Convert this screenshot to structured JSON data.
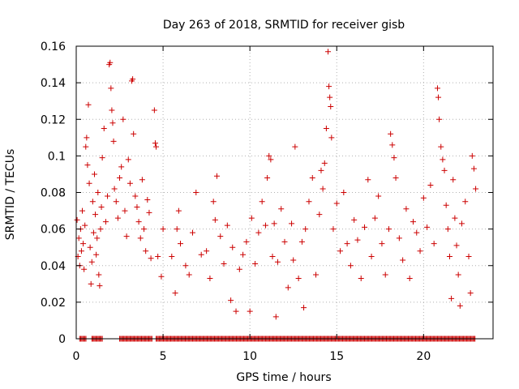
{
  "chart_data": {
    "type": "scatter",
    "title": "Day 263 of 2018, SRMTID for receiver gisb",
    "xlabel": "GPS time / hours",
    "ylabel": "SRMTID / TECUs",
    "xlim": [
      0,
      24
    ],
    "ylim": [
      0,
      0.16
    ],
    "x_ticks": [
      0,
      5,
      10,
      15,
      20
    ],
    "x_tick_labels": [
      "0",
      "5",
      "10",
      "15",
      "20"
    ],
    "y_ticks": [
      0,
      0.02,
      0.04,
      0.06,
      0.08,
      0.1,
      0.12,
      0.14,
      0.16
    ],
    "y_tick_labels": [
      "0",
      "0.02",
      "0.04",
      "0.06",
      "0.08",
      "0.1",
      "0.12",
      "0.14",
      "0.16"
    ],
    "grid": true,
    "marker": "+",
    "series": [
      {
        "name": "SRMTID",
        "color": "#cc0000",
        "points": [
          [
            0.05,
            0.065
          ],
          [
            0.1,
            0.045
          ],
          [
            0.15,
            0.055
          ],
          [
            0.2,
            0.04
          ],
          [
            0.25,
            0.06
          ],
          [
            0.3,
            0.048
          ],
          [
            0.35,
            0.07
          ],
          [
            0.4,
            0.052
          ],
          [
            0.45,
            0.038
          ],
          [
            0.5,
            0.062
          ],
          [
            0.55,
            0.105
          ],
          [
            0.6,
            0.11
          ],
          [
            0.65,
            0.095
          ],
          [
            0.7,
            0.128
          ],
          [
            0.75,
            0.085
          ],
          [
            0.8,
            0.05
          ],
          [
            0.85,
            0.03
          ],
          [
            0.9,
            0.042
          ],
          [
            0.95,
            0.075
          ],
          [
            1.0,
            0.058
          ],
          [
            1.05,
            0.09
          ],
          [
            1.1,
            0.068
          ],
          [
            1.15,
            0.046
          ],
          [
            1.2,
            0.055
          ],
          [
            1.25,
            0.08
          ],
          [
            1.3,
            0.035
          ],
          [
            1.35,
            0.029
          ],
          [
            1.4,
            0.06
          ],
          [
            1.45,
            0.072
          ],
          [
            1.5,
            0.099
          ],
          [
            1.6,
            0.115
          ],
          [
            1.7,
            0.064
          ],
          [
            1.8,
            0.078
          ],
          [
            1.9,
            0.15
          ],
          [
            1.95,
            0.151
          ],
          [
            2.0,
            0.137
          ],
          [
            2.05,
            0.125
          ],
          [
            2.1,
            0.118
          ],
          [
            2.15,
            0.108
          ],
          [
            2.2,
            0.082
          ],
          [
            2.3,
            0.075
          ],
          [
            2.4,
            0.066
          ],
          [
            2.5,
            0.088
          ],
          [
            2.6,
            0.094
          ],
          [
            2.7,
            0.12
          ],
          [
            2.8,
            0.07
          ],
          [
            2.9,
            0.056
          ],
          [
            3.0,
            0.098
          ],
          [
            3.1,
            0.085
          ],
          [
            3.2,
            0.141
          ],
          [
            3.25,
            0.142
          ],
          [
            3.3,
            0.112
          ],
          [
            3.4,
            0.078
          ],
          [
            3.5,
            0.072
          ],
          [
            3.6,
            0.064
          ],
          [
            3.7,
            0.055
          ],
          [
            3.8,
            0.087
          ],
          [
            3.9,
            0.06
          ],
          [
            4.0,
            0.048
          ],
          [
            4.1,
            0.076
          ],
          [
            4.2,
            0.069
          ],
          [
            4.3,
            0.044
          ],
          [
            4.5,
            0.125
          ],
          [
            4.55,
            0.107
          ],
          [
            4.6,
            0.105
          ],
          [
            4.7,
            0.045
          ],
          [
            4.9,
            0.034
          ],
          [
            5.0,
            0.06
          ],
          [
            5.5,
            0.045
          ],
          [
            5.7,
            0.025
          ],
          [
            5.8,
            0.06
          ],
          [
            5.9,
            0.07
          ],
          [
            6.0,
            0.052
          ],
          [
            6.3,
            0.04
          ],
          [
            6.5,
            0.035
          ],
          [
            6.7,
            0.058
          ],
          [
            6.9,
            0.08
          ],
          [
            7.2,
            0.046
          ],
          [
            7.5,
            0.048
          ],
          [
            7.7,
            0.033
          ],
          [
            7.9,
            0.075
          ],
          [
            8.0,
            0.065
          ],
          [
            8.1,
            0.089
          ],
          [
            8.3,
            0.056
          ],
          [
            8.5,
            0.041
          ],
          [
            8.7,
            0.062
          ],
          [
            8.9,
            0.021
          ],
          [
            9.0,
            0.05
          ],
          [
            9.2,
            0.015
          ],
          [
            9.4,
            0.038
          ],
          [
            9.6,
            0.046
          ],
          [
            9.8,
            0.053
          ],
          [
            10.0,
            0.015
          ],
          [
            10.1,
            0.066
          ],
          [
            10.3,
            0.041
          ],
          [
            10.5,
            0.058
          ],
          [
            10.7,
            0.075
          ],
          [
            10.9,
            0.062
          ],
          [
            11.0,
            0.088
          ],
          [
            11.1,
            0.1
          ],
          [
            11.2,
            0.098
          ],
          [
            11.3,
            0.045
          ],
          [
            11.4,
            0.063
          ],
          [
            11.5,
            0.012
          ],
          [
            11.6,
            0.042
          ],
          [
            11.8,
            0.071
          ],
          [
            12.0,
            0.053
          ],
          [
            12.2,
            0.028
          ],
          [
            12.4,
            0.063
          ],
          [
            12.5,
            0.043
          ],
          [
            12.6,
            0.105
          ],
          [
            12.8,
            0.033
          ],
          [
            13.0,
            0.053
          ],
          [
            13.1,
            0.017
          ],
          [
            13.2,
            0.06
          ],
          [
            13.4,
            0.075
          ],
          [
            13.6,
            0.088
          ],
          [
            13.8,
            0.035
          ],
          [
            14.0,
            0.068
          ],
          [
            14.1,
            0.092
          ],
          [
            14.2,
            0.082
          ],
          [
            14.3,
            0.096
          ],
          [
            14.4,
            0.115
          ],
          [
            14.5,
            0.157
          ],
          [
            14.55,
            0.138
          ],
          [
            14.6,
            0.132
          ],
          [
            14.65,
            0.127
          ],
          [
            14.7,
            0.11
          ],
          [
            14.8,
            0.06
          ],
          [
            15.0,
            0.074
          ],
          [
            15.2,
            0.048
          ],
          [
            15.4,
            0.08
          ],
          [
            15.6,
            0.052
          ],
          [
            15.8,
            0.04
          ],
          [
            16.0,
            0.065
          ],
          [
            16.2,
            0.054
          ],
          [
            16.4,
            0.033
          ],
          [
            16.6,
            0.061
          ],
          [
            16.8,
            0.087
          ],
          [
            17.0,
            0.045
          ],
          [
            17.2,
            0.066
          ],
          [
            17.4,
            0.078
          ],
          [
            17.6,
            0.052
          ],
          [
            17.8,
            0.035
          ],
          [
            18.0,
            0.06
          ],
          [
            18.1,
            0.112
          ],
          [
            18.2,
            0.106
          ],
          [
            18.3,
            0.099
          ],
          [
            18.4,
            0.088
          ],
          [
            18.6,
            0.055
          ],
          [
            18.8,
            0.043
          ],
          [
            19.0,
            0.071
          ],
          [
            19.2,
            0.033
          ],
          [
            19.4,
            0.064
          ],
          [
            19.6,
            0.058
          ],
          [
            19.8,
            0.048
          ],
          [
            20.0,
            0.077
          ],
          [
            20.2,
            0.061
          ],
          [
            20.4,
            0.084
          ],
          [
            20.6,
            0.052
          ],
          [
            20.8,
            0.137
          ],
          [
            20.85,
            0.132
          ],
          [
            20.9,
            0.12
          ],
          [
            21.0,
            0.105
          ],
          [
            21.1,
            0.098
          ],
          [
            21.2,
            0.092
          ],
          [
            21.3,
            0.073
          ],
          [
            21.4,
            0.06
          ],
          [
            21.5,
            0.045
          ],
          [
            21.6,
            0.022
          ],
          [
            21.7,
            0.087
          ],
          [
            21.8,
            0.066
          ],
          [
            21.9,
            0.051
          ],
          [
            22.0,
            0.035
          ],
          [
            22.1,
            0.018
          ],
          [
            22.2,
            0.063
          ],
          [
            22.4,
            0.075
          ],
          [
            22.6,
            0.045
          ],
          [
            22.7,
            0.025
          ],
          [
            22.8,
            0.1
          ],
          [
            22.9,
            0.093
          ],
          [
            23.0,
            0.082
          ]
        ]
      }
    ],
    "zero_band_x": [
      [
        0.2,
        0.6
      ],
      [
        0.9,
        1.5
      ],
      [
        2.5,
        4.4
      ],
      [
        4.6,
        23.0
      ]
    ]
  }
}
